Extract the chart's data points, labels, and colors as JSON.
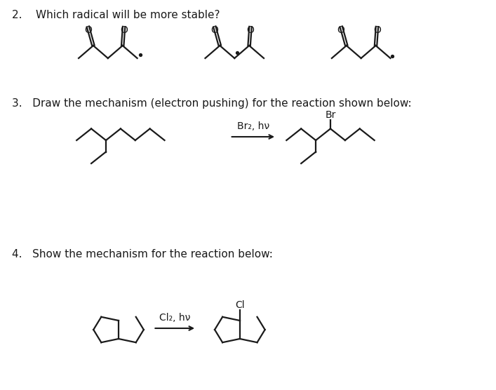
{
  "background_color": "#ffffff",
  "text_color": "#1a1a1a",
  "title_q2": "2.    Which radical will be more stable?",
  "title_q3": "3.   Draw the mechanism (electron pushing) for the reaction shown below:",
  "title_q4": "4.   Show the mechanism for the reaction below:",
  "reagent_q3": "Br₂, hν",
  "reagent_q4": "Cl₂, hν",
  "br_label": "Br",
  "cl_label": "Cl"
}
